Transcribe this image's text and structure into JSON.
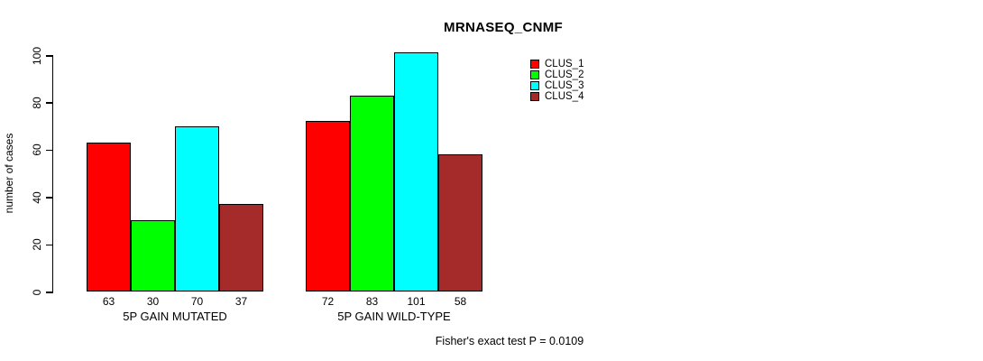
{
  "chart_data": {
    "type": "bar",
    "title": "MRNASEQ_CNMF",
    "ylabel": "number of cases",
    "xlabel": "",
    "ylim": [
      0,
      100
    ],
    "yticks": [
      0,
      20,
      40,
      60,
      80,
      100
    ],
    "grid": false,
    "legend_position": "top-right",
    "categories": [
      "5P GAIN MUTATED",
      "5P GAIN WILD-TYPE"
    ],
    "series": [
      {
        "name": "CLUS_1",
        "color": "#ff0000",
        "values": [
          63,
          72
        ]
      },
      {
        "name": "CLUS_2",
        "color": "#00ff00",
        "values": [
          30,
          83
        ]
      },
      {
        "name": "CLUS_3",
        "color": "#00ffff",
        "values": [
          70,
          101
        ]
      },
      {
        "name": "CLUS_4",
        "color": "#a52a2a",
        "values": [
          37,
          58
        ]
      }
    ],
    "bar_value_labels": [
      [
        63,
        30,
        70,
        37
      ],
      [
        72,
        83,
        101,
        58
      ]
    ],
    "annotation": "Fisher's exact test P = 0.0109"
  }
}
